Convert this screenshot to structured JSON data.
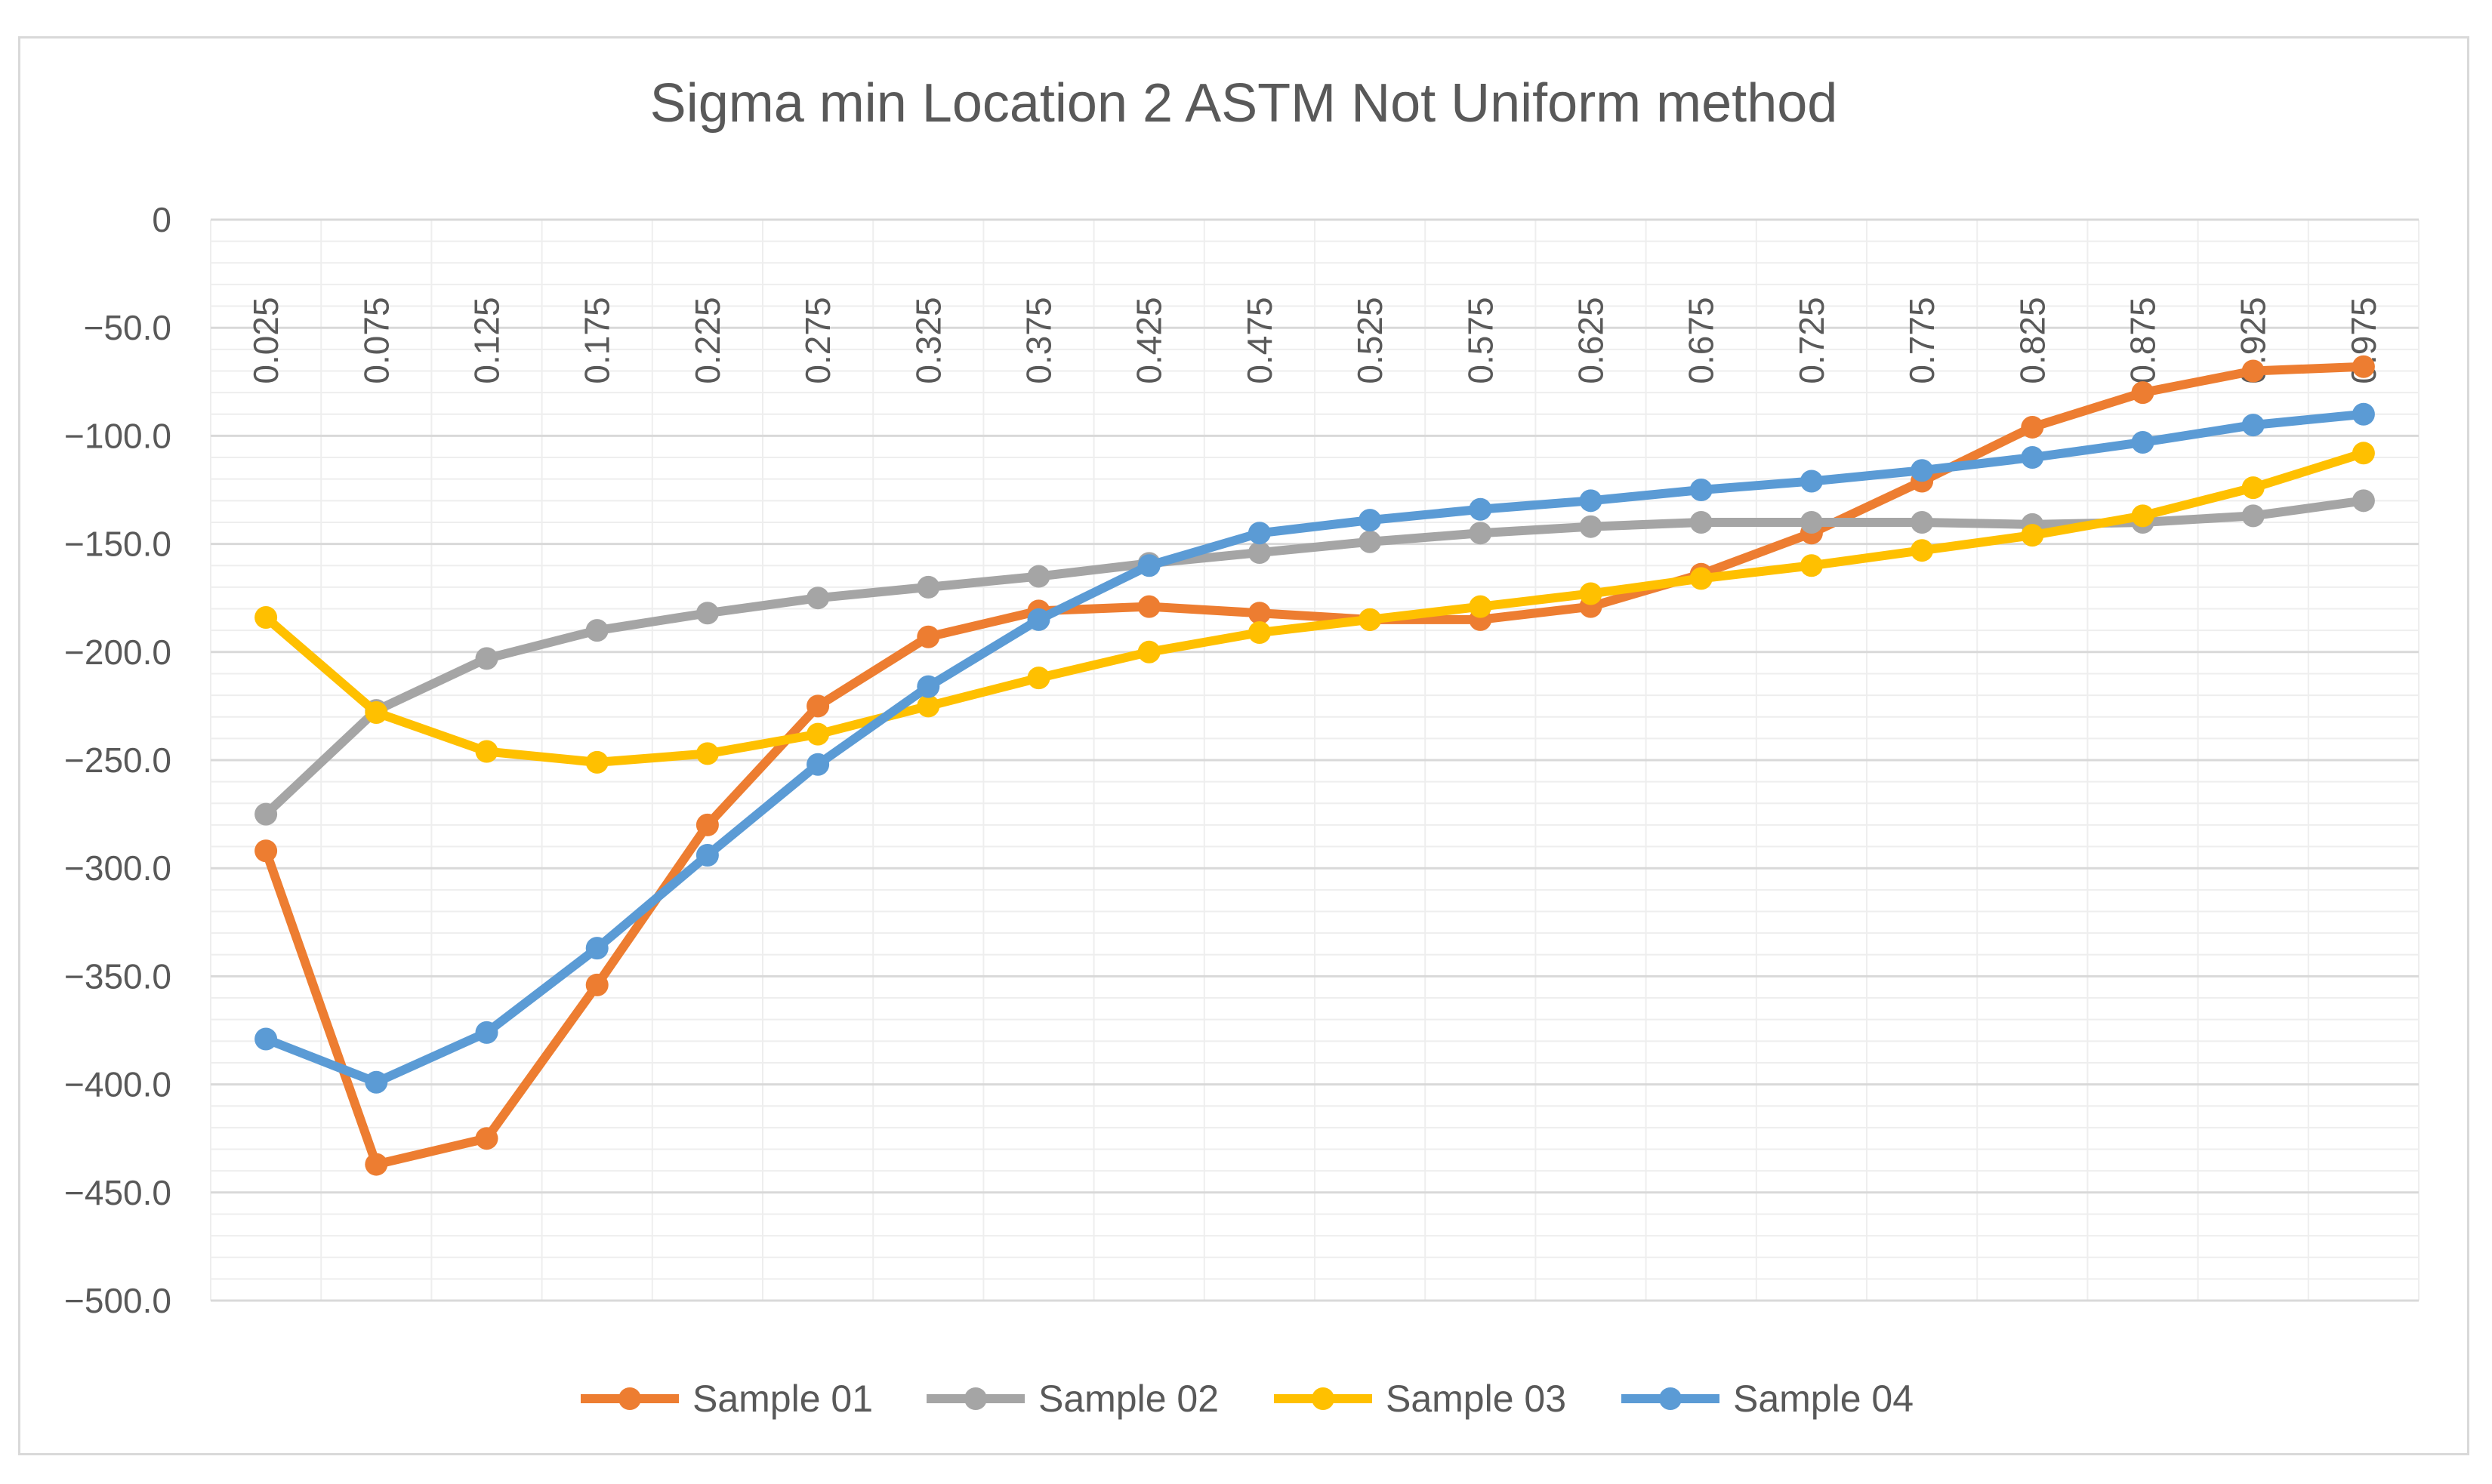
{
  "chart_data": {
    "type": "line",
    "title": "Sigma min Location 2 ASTM Not Uniform method",
    "xlabel": "",
    "ylabel": "",
    "categories": [
      "0.025",
      "0.075",
      "0.125",
      "0.175",
      "0.225",
      "0.275",
      "0.325",
      "0.375",
      "0.425",
      "0.475",
      "0.525",
      "0.575",
      "0.625",
      "0.675",
      "0.725",
      "0.775",
      "0.825",
      "0.875",
      "0.925",
      "0.975"
    ],
    "ylim": [
      -500,
      0
    ],
    "yticks": [
      0,
      -50,
      -100,
      -150,
      -200,
      -250,
      -300,
      -350,
      -400,
      -450,
      -500
    ],
    "ytick_labels": [
      "0",
      "−50.0",
      "−100.0",
      "−150.0",
      "−200.0",
      "−250.0",
      "−300.0",
      "−350.0",
      "−400.0",
      "−450.0",
      "−500.0"
    ],
    "grid": true,
    "legend_position": "bottom",
    "series": [
      {
        "name": "Sample 01",
        "color": "#ed7d31",
        "values": [
          -292,
          -437,
          -425,
          -354,
          -280,
          -225,
          -193,
          -181,
          -179,
          -182,
          -185,
          -185,
          -179,
          -164,
          -145,
          -121,
          -96,
          -80,
          -70,
          -68
        ]
      },
      {
        "name": "Sample 02",
        "color": "#a5a5a5",
        "values": [
          -275,
          -227,
          -203,
          -190,
          -182,
          -175,
          -170,
          -165,
          -159,
          -154,
          -149,
          -145,
          -142,
          -140,
          -140,
          -140,
          -141,
          -140,
          -137,
          -130
        ]
      },
      {
        "name": "Sample 03",
        "color": "#ffc000",
        "values": [
          -184,
          -228,
          -246,
          -251,
          -247,
          -238,
          -225,
          -212,
          -200,
          -191,
          -185,
          -179,
          -173,
          -166,
          -160,
          -153,
          -146,
          -137,
          -124,
          -108
        ]
      },
      {
        "name": "Sample 04",
        "color": "#5b9bd5",
        "values": [
          -379,
          -399,
          -376,
          -337,
          -294,
          -252,
          -216,
          -185,
          -160,
          -145,
          -139,
          -134,
          -130,
          -125,
          -121,
          -116,
          -110,
          -103,
          -95,
          -90
        ]
      }
    ]
  }
}
